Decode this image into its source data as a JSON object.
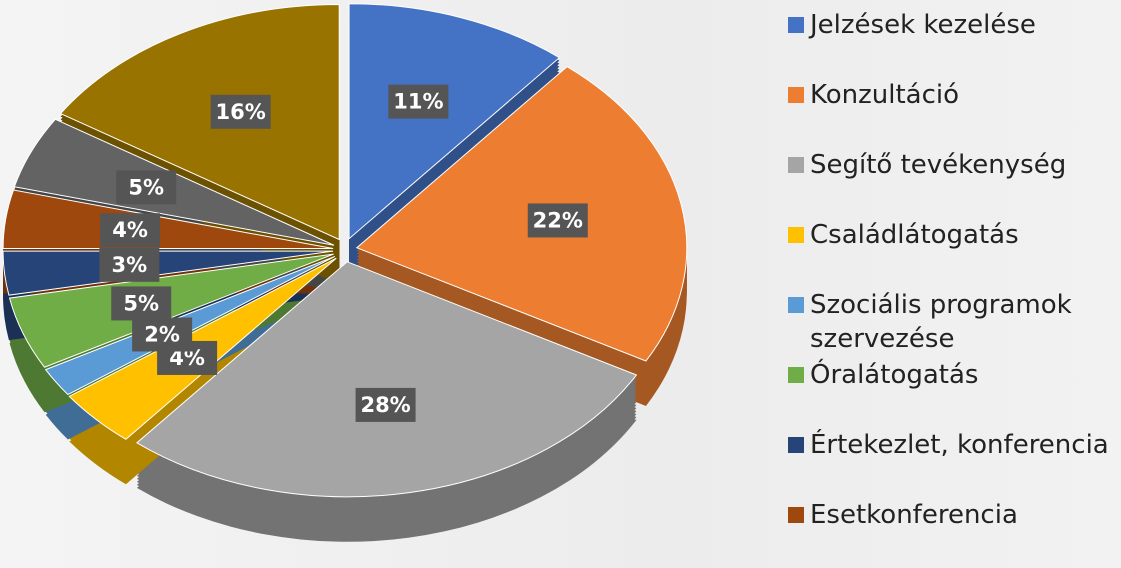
{
  "chart_data": {
    "type": "pie",
    "categories": [
      "Jelzések kezelése",
      "Konzultáció",
      "Segítő tevékenység",
      "Családlátogatás",
      "Szociális programok szervezése",
      "Óralátogatás",
      "Értekezlet, konferencia",
      "Esetkonferencia",
      null,
      null
    ],
    "values": [
      11,
      22,
      28,
      4,
      2,
      5,
      3,
      4,
      5,
      16
    ],
    "value_labels": [
      "11%",
      "22%",
      "28%",
      "4%",
      "2%",
      "5%",
      "3%",
      "4%",
      "5%",
      "16%"
    ],
    "colors": [
      "#4472c4",
      "#ed7d31",
      "#a5a5a5",
      "#ffc000",
      "#5b9bd5",
      "#70ad47",
      "#264478",
      "#9e480e",
      "#636363",
      "#997300"
    ]
  }
}
